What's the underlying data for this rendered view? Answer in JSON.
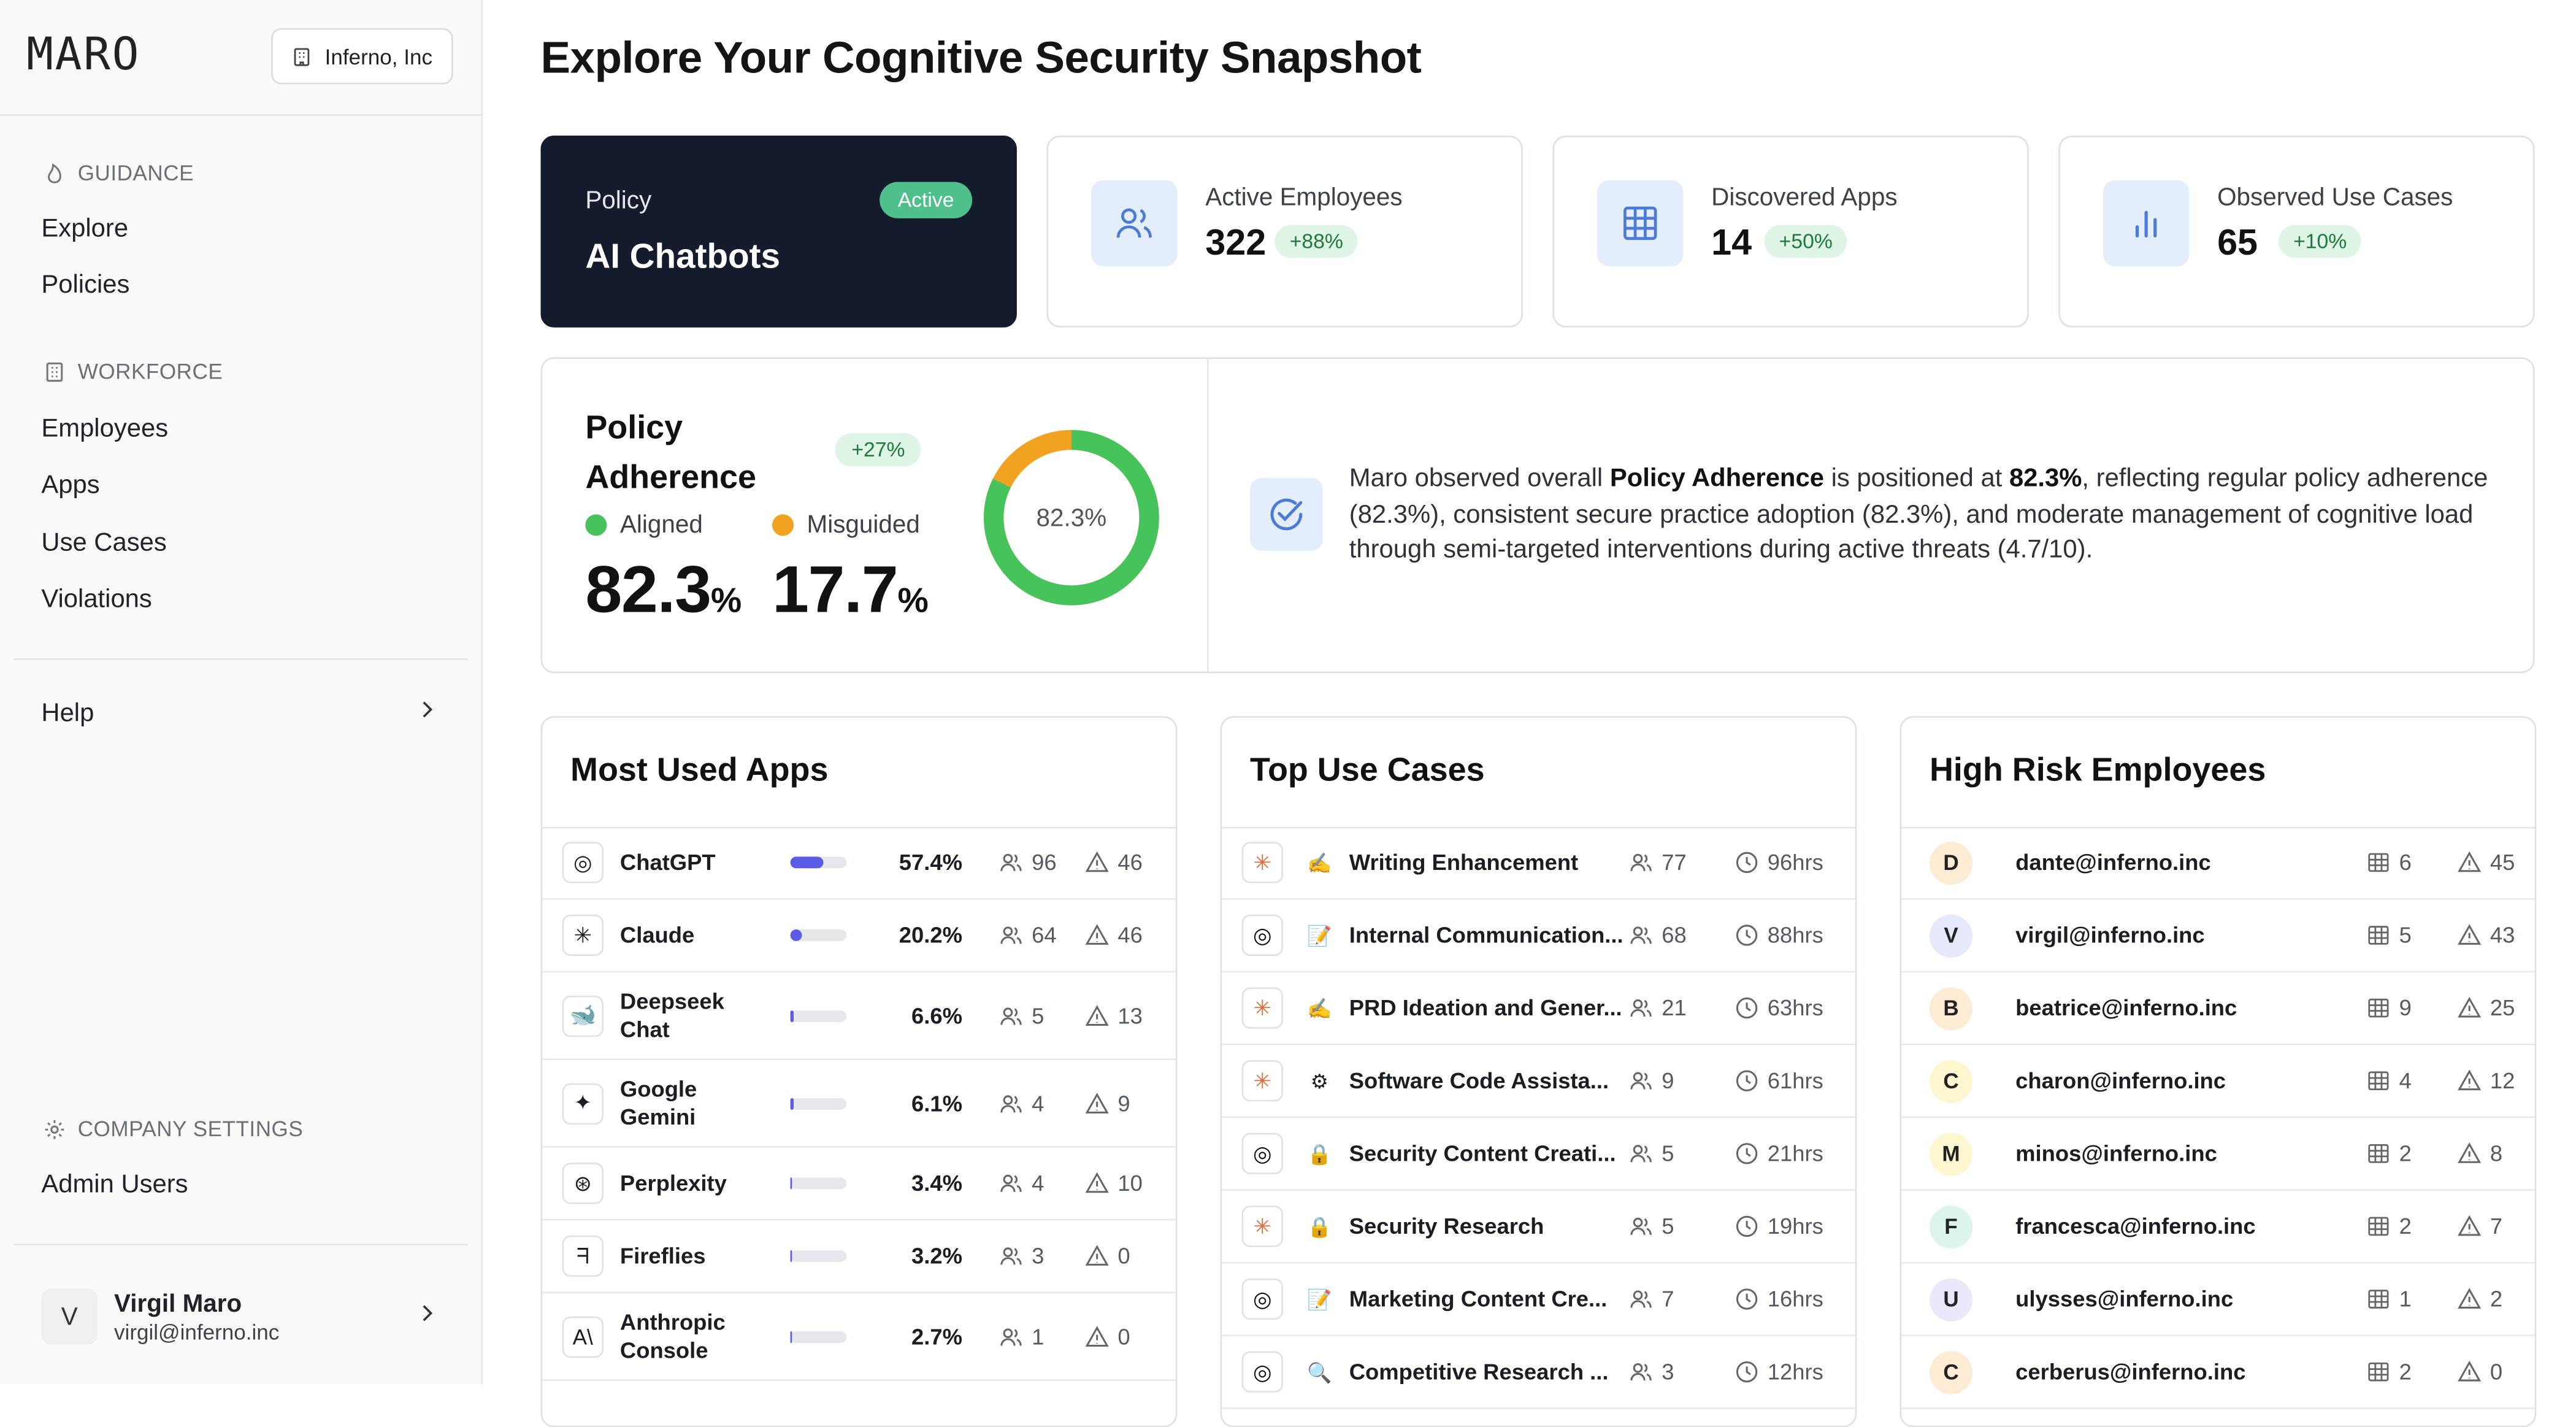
{
  "sidebar": {
    "logo": "MARO",
    "org_name": "Inferno, Inc",
    "guidance_heading": "GUIDANCE",
    "guidance_items": [
      "Explore",
      "Policies"
    ],
    "workforce_heading": "WORKFORCE",
    "workforce_items": [
      "Employees",
      "Apps",
      "Use Cases",
      "Violations"
    ],
    "help_label": "Help",
    "company_heading": "COMPANY SETTINGS",
    "company_items": [
      "Admin Users"
    ],
    "user": {
      "initial": "V",
      "name": "Virgil Maro",
      "email": "virgil@inferno.inc"
    }
  },
  "page_title": "Explore Your Cognitive Security Snapshot",
  "policy": {
    "label": "Policy",
    "name": "AI Chatbots",
    "status": "Active"
  },
  "stats": [
    {
      "label": "Active Employees",
      "value": "322",
      "delta": "+88%",
      "icon": "users-icon"
    },
    {
      "label": "Discovered Apps",
      "value": "14",
      "delta": "+50%",
      "icon": "grid-icon"
    },
    {
      "label": "Observed Use Cases",
      "value": "65",
      "delta": "+10%",
      "icon": "bar-chart-icon"
    }
  ],
  "adherence": {
    "title": "Policy Adherence",
    "delta": "+27%",
    "aligned_label": "Aligned",
    "misguided_label": "Misguided",
    "aligned_value": "82.3",
    "misguided_value": "17.7",
    "pct_sign": "%",
    "donut_label": "82.3%",
    "aligned_fraction": 0.823,
    "colors": {
      "aligned": "#46c35a",
      "misguided": "#f0a220"
    },
    "summary_intro": "Maro observed overall ",
    "summary_bold1": "Policy Adherence",
    "summary_mid": " is positioned at ",
    "summary_bold2": "82.3%",
    "summary_rest": ", reflecting regular policy adherence (82.3%), consistent secure practice adoption (82.3%), and moderate management of cognitive load through semi-targeted interventions during active threats (4.7/10)."
  },
  "most_used_apps": {
    "title": "Most Used Apps",
    "rows": [
      {
        "icon": "◎",
        "icon_name": "chatgpt-icon",
        "name": "ChatGPT",
        "share": 0.574,
        "pct": "57.4%",
        "users": "96",
        "alerts": "46"
      },
      {
        "icon": "✳",
        "icon_name": "claude-icon",
        "name": "Claude",
        "share": 0.202,
        "pct": "20.2%",
        "users": "64",
        "alerts": "46"
      },
      {
        "icon": "🐋",
        "icon_name": "deepseek-icon",
        "name": "Deepseek Chat",
        "share": 0.066,
        "pct": "6.6%",
        "users": "5",
        "alerts": "13"
      },
      {
        "icon": "✦",
        "icon_name": "gemini-icon",
        "name": "Google Gemini",
        "share": 0.061,
        "pct": "6.1%",
        "users": "4",
        "alerts": "9"
      },
      {
        "icon": "⊛",
        "icon_name": "perplexity-icon",
        "name": "Perplexity",
        "share": 0.034,
        "pct": "3.4%",
        "users": "4",
        "alerts": "10"
      },
      {
        "icon": "ᖷ",
        "icon_name": "fireflies-icon",
        "name": "Fireflies",
        "share": 0.032,
        "pct": "3.2%",
        "users": "3",
        "alerts": "0"
      },
      {
        "icon": "A\\",
        "icon_name": "anthropic-icon",
        "name": "Anthropic Console",
        "share": 0.027,
        "pct": "2.7%",
        "users": "1",
        "alerts": "0"
      }
    ]
  },
  "top_use_cases": {
    "title": "Top Use Cases",
    "rows": [
      {
        "app_icon": "✳",
        "emoji": "✍",
        "name": "Writing Enhancement",
        "users": "77",
        "hours": "96hrs"
      },
      {
        "app_icon": "◎",
        "emoji": "📝",
        "name": "Internal Communication...",
        "users": "68",
        "hours": "88hrs"
      },
      {
        "app_icon": "✳",
        "emoji": "✍",
        "name": "PRD Ideation and Gener...",
        "users": "21",
        "hours": "63hrs"
      },
      {
        "app_icon": "✳",
        "emoji": "⚙",
        "name": "Software Code Assista...",
        "users": "9",
        "hours": "61hrs"
      },
      {
        "app_icon": "◎",
        "emoji": "🔒",
        "name": "Security Content Creati...",
        "users": "5",
        "hours": "21hrs"
      },
      {
        "app_icon": "✳",
        "emoji": "🔒",
        "name": "Security Research",
        "users": "5",
        "hours": "19hrs"
      },
      {
        "app_icon": "◎",
        "emoji": "📝",
        "name": "Marketing Content Cre...",
        "users": "7",
        "hours": "16hrs"
      },
      {
        "app_icon": "◎",
        "emoji": "🔍",
        "name": "Competitive Research ...",
        "users": "3",
        "hours": "12hrs"
      }
    ]
  },
  "high_risk_employees": {
    "title": "High Risk Employees",
    "rows": [
      {
        "initial": "D",
        "color": "#fdebd3",
        "email": "dante@inferno.inc",
        "apps": "6",
        "alerts": "45"
      },
      {
        "initial": "V",
        "color": "#e6e8fb",
        "email": "virgil@inferno.inc",
        "apps": "5",
        "alerts": "43"
      },
      {
        "initial": "B",
        "color": "#fdebd3",
        "email": "beatrice@inferno.inc",
        "apps": "9",
        "alerts": "25"
      },
      {
        "initial": "C",
        "color": "#fdf6cf",
        "email": "charon@inferno.inc",
        "apps": "4",
        "alerts": "12"
      },
      {
        "initial": "M",
        "color": "#fdf6cf",
        "email": "minos@inferno.inc",
        "apps": "2",
        "alerts": "8"
      },
      {
        "initial": "F",
        "color": "#dcf6ec",
        "email": "francesca@inferno.inc",
        "apps": "2",
        "alerts": "7"
      },
      {
        "initial": "U",
        "color": "#ece8fb",
        "email": "ulysses@inferno.inc",
        "apps": "1",
        "alerts": "2"
      },
      {
        "initial": "C",
        "color": "#fdebd3",
        "email": "cerberus@inferno.inc",
        "apps": "2",
        "alerts": "0"
      }
    ]
  }
}
